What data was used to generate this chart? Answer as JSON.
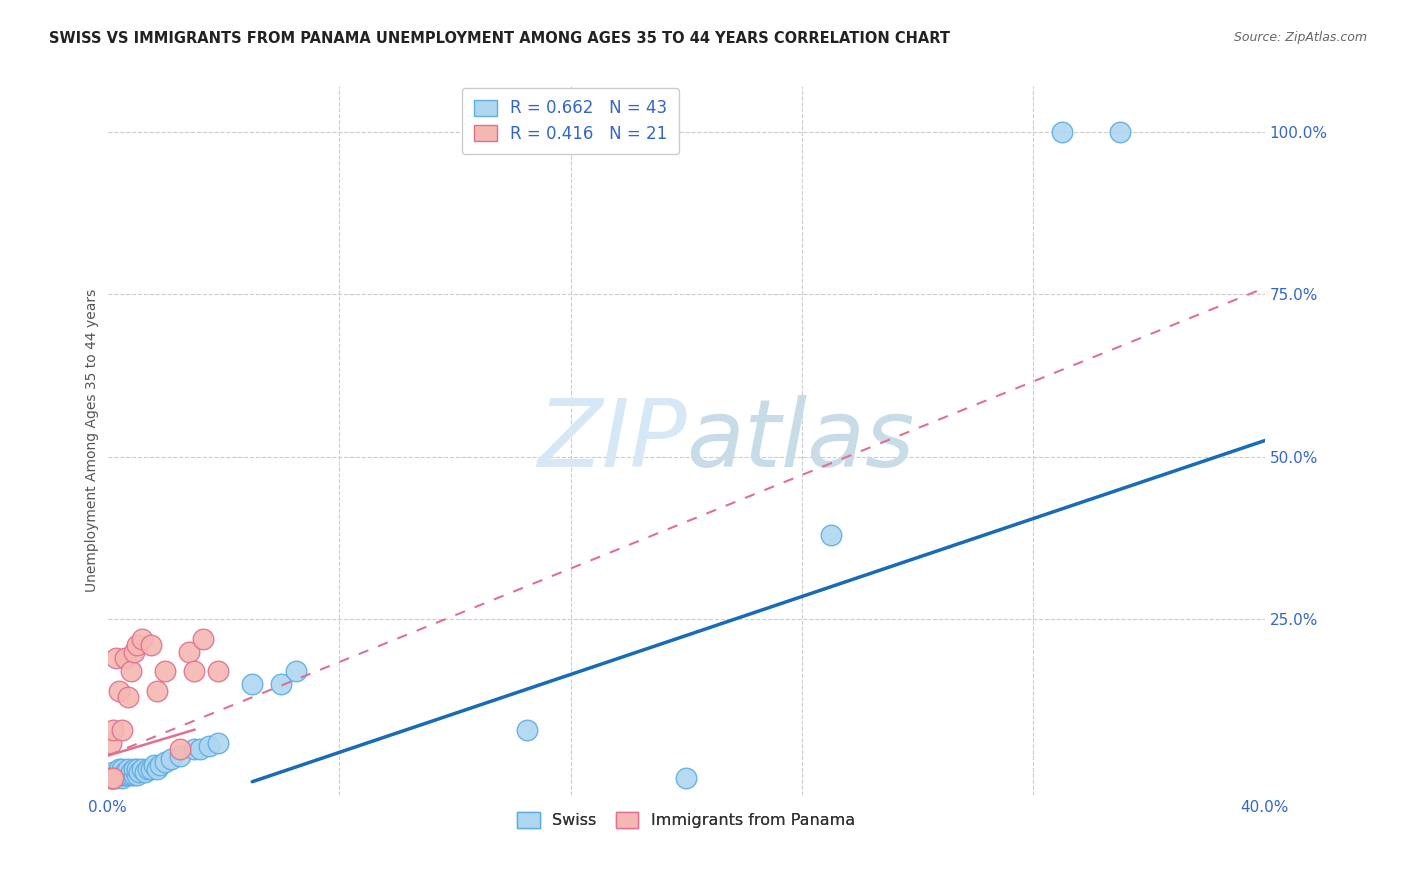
{
  "title": "SWISS VS IMMIGRANTS FROM PANAMA UNEMPLOYMENT AMONG AGES 35 TO 44 YEARS CORRELATION CHART",
  "source": "Source: ZipAtlas.com",
  "ylabel": "Unemployment Among Ages 35 to 44 years",
  "xlim": [
    0.0,
    0.4
  ],
  "ylim": [
    -0.02,
    1.07
  ],
  "swiss_color": "#aed6f1",
  "swiss_edge_color": "#5dade2",
  "panama_color": "#f5b7b1",
  "panama_edge_color": "#e07090",
  "blue_line_color": "#1a6bb5",
  "pink_line_color": "#e07090",
  "grid_color": "#cccccc",
  "watermark_color": "#d6e8f5",
  "swiss_x": [
    0.001,
    0.001,
    0.002,
    0.002,
    0.003,
    0.003,
    0.004,
    0.004,
    0.005,
    0.005,
    0.005,
    0.006,
    0.006,
    0.007,
    0.007,
    0.008,
    0.008,
    0.009,
    0.009,
    0.01,
    0.01,
    0.011,
    0.012,
    0.013,
    0.014,
    0.015,
    0.016,
    0.017,
    0.018,
    0.02,
    0.022,
    0.025,
    0.03,
    0.032,
    0.035,
    0.038,
    0.05,
    0.06,
    0.065,
    0.145,
    0.2,
    0.25,
    0.33,
    0.35
  ],
  "swiss_y": [
    0.005,
    0.01,
    0.005,
    0.015,
    0.005,
    0.01,
    0.01,
    0.02,
    0.005,
    0.01,
    0.02,
    0.01,
    0.015,
    0.01,
    0.02,
    0.01,
    0.015,
    0.01,
    0.02,
    0.01,
    0.02,
    0.015,
    0.02,
    0.015,
    0.02,
    0.02,
    0.025,
    0.02,
    0.025,
    0.03,
    0.035,
    0.04,
    0.05,
    0.05,
    0.055,
    0.06,
    0.15,
    0.15,
    0.17,
    0.08,
    0.005,
    0.38,
    1.0,
    1.0
  ],
  "panama_x": [
    0.001,
    0.001,
    0.002,
    0.002,
    0.003,
    0.004,
    0.005,
    0.006,
    0.007,
    0.008,
    0.009,
    0.01,
    0.012,
    0.015,
    0.017,
    0.02,
    0.025,
    0.028,
    0.03,
    0.033,
    0.038
  ],
  "panama_y": [
    0.005,
    0.06,
    0.005,
    0.08,
    0.19,
    0.14,
    0.08,
    0.19,
    0.13,
    0.17,
    0.2,
    0.21,
    0.22,
    0.21,
    0.14,
    0.17,
    0.05,
    0.2,
    0.17,
    0.22,
    0.17
  ],
  "blue_line_x": [
    0.05,
    0.4
  ],
  "blue_line_y": [
    0.0,
    0.525
  ],
  "pink_line_x": [
    0.0,
    0.4
  ],
  "pink_line_y": [
    0.04,
    0.76
  ]
}
